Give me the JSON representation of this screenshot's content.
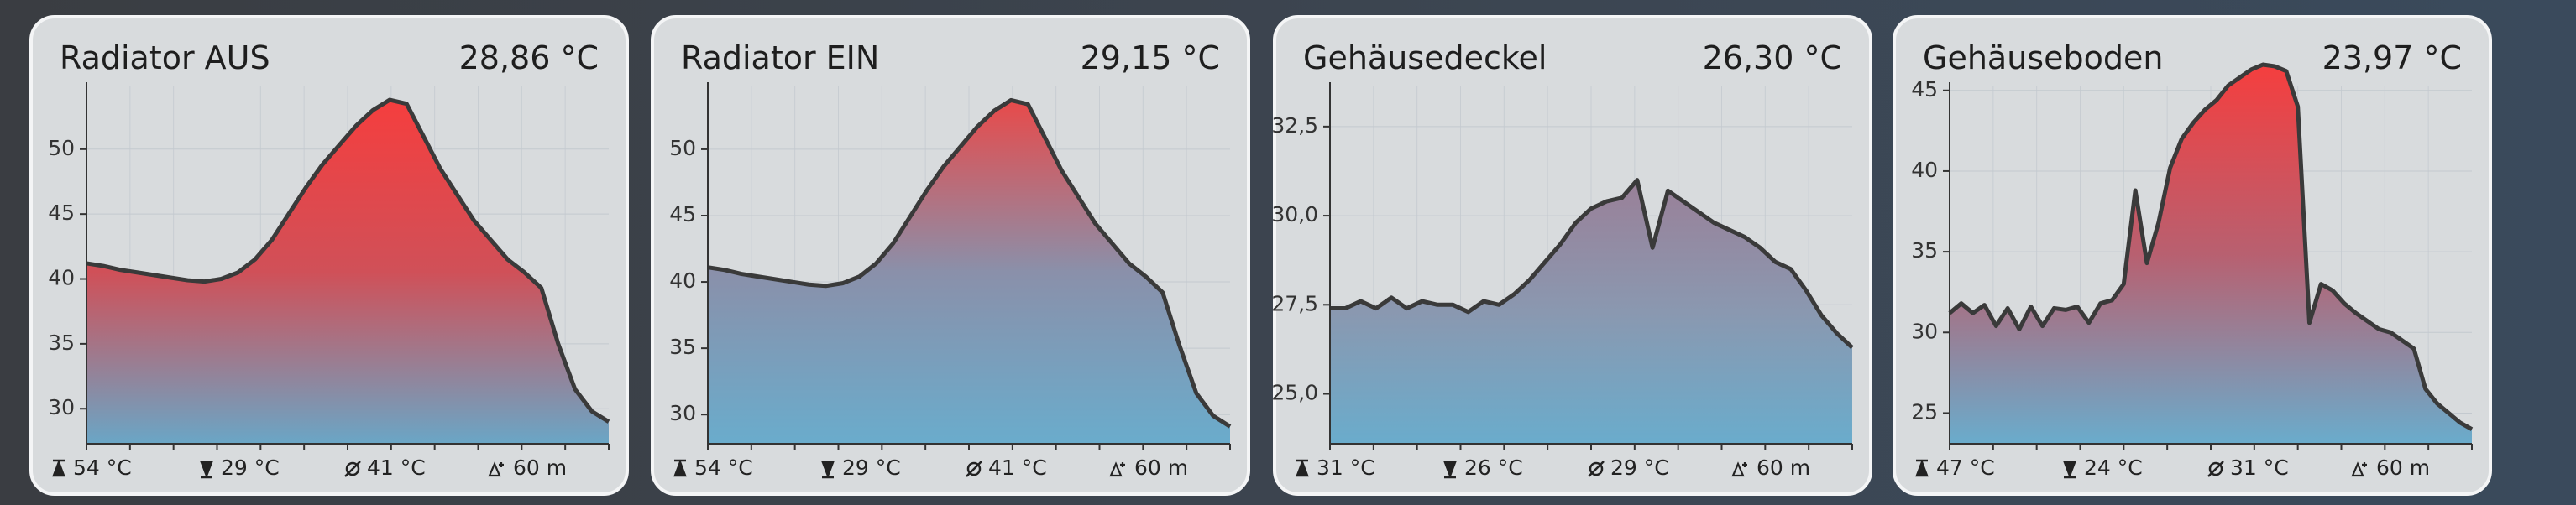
{
  "chart_data": [
    {
      "type": "area",
      "title": "Radiator AUS",
      "current": "28,86 °C",
      "stats": [
        "54 °C",
        "29 °C",
        "41 °C",
        "60 m"
      ],
      "colors": [
        "#f53e3e",
        "#d05058",
        "#6aa6c6"
      ],
      "values": [
        41.2,
        41,
        40.7,
        40.5,
        40.3,
        40.1,
        39.9,
        39.8,
        40,
        40.5,
        41.5,
        43,
        45,
        47,
        48.8,
        50.3,
        51.8,
        53,
        53.8,
        53.5,
        51,
        48.5,
        46.5,
        44.5,
        43,
        41.5,
        40.5,
        39.3,
        35,
        31.5,
        29.8,
        29
      ],
      "ylim": [
        27.3,
        54.9
      ],
      "yticks": [
        30,
        35,
        40,
        45,
        50
      ]
    },
    {
      "type": "area",
      "title": "Radiator EIN",
      "current": "29,15 °C",
      "stats": [
        "54 °C",
        "29 °C",
        "41 °C",
        "60 m"
      ],
      "colors": [
        "#e84a4a",
        "#8a90aa",
        "#6aaccc"
      ],
      "values": [
        41.1,
        40.9,
        40.6,
        40.4,
        40.2,
        40,
        39.8,
        39.7,
        39.9,
        40.4,
        41.4,
        42.9,
        44.9,
        46.9,
        48.7,
        50.2,
        51.7,
        52.9,
        53.7,
        53.4,
        50.9,
        48.4,
        46.4,
        44.4,
        42.9,
        41.4,
        40.4,
        39.2,
        35.2,
        31.6,
        29.9,
        29.1
      ],
      "ylim": [
        27.8,
        54.8
      ],
      "yticks": [
        30,
        35,
        40,
        45,
        50
      ]
    },
    {
      "type": "area",
      "title": "Gehäusedeckel",
      "current": "26,30 °C",
      "stats": [
        "31 °C",
        "26 °C",
        "29 °C",
        "60 m"
      ],
      "colors": [
        "#9a8098",
        "#8a98b0",
        "#6aaccc"
      ],
      "values": [
        27.4,
        27.4,
        27.6,
        27.4,
        27.7,
        27.4,
        27.6,
        27.5,
        27.5,
        27.3,
        27.6,
        27.5,
        27.8,
        28.2,
        28.7,
        29.2,
        29.8,
        30.2,
        30.4,
        30.5,
        31,
        29.1,
        30.7,
        30.4,
        30.1,
        29.8,
        29.6,
        29.4,
        29.1,
        28.7,
        28.5,
        27.9,
        27.2,
        26.7,
        26.3
      ],
      "ylim": [
        23.6,
        33.65
      ],
      "yticks": [
        {
          "value": 25,
          "label": "25,0"
        },
        {
          "value": 27.5,
          "label": "27,5"
        },
        {
          "value": 30,
          "label": "30,0"
        },
        {
          "value": 32.5,
          "label": "32,5"
        }
      ]
    },
    {
      "type": "area",
      "title": "Gehäuseboden",
      "current": "23,97 °C",
      "stats": [
        "47 °C",
        "24 °C",
        "31 °C",
        "60 m"
      ],
      "colors": [
        "#f53e3e",
        "#b86070",
        "#6aaccc"
      ],
      "values": [
        31.2,
        31.8,
        31.2,
        31.7,
        30.4,
        31.5,
        30.2,
        31.6,
        30.4,
        31.5,
        31.4,
        31.6,
        30.6,
        31.8,
        32,
        33,
        38.8,
        34.3,
        36.8,
        40.2,
        42,
        43,
        43.8,
        44.4,
        45.3,
        45.8,
        46.3,
        46.6,
        46.5,
        46.2,
        44,
        30.6,
        33,
        32.6,
        31.8,
        31.2,
        30.7,
        30.2,
        30,
        29.5,
        29,
        26.5,
        25.6,
        25,
        24.4,
        24
      ],
      "ylim": [
        23.1,
        45.3
      ],
      "yticks": [
        25,
        30,
        35,
        40,
        45
      ]
    }
  ]
}
